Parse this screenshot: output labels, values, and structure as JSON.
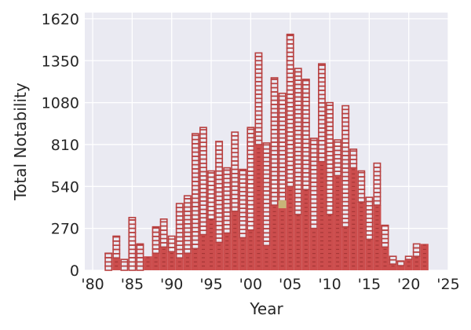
{
  "chart_data": {
    "type": "bar",
    "style": "stacked segment histogram (outlined boxes with filled lower stack)",
    "xlabel": "Year",
    "ylabel": "Total Notability",
    "xlim": [
      1979,
      2025
    ],
    "ylim": [
      0,
      1660
    ],
    "x_ticks": [
      1980,
      1985,
      1990,
      1995,
      2000,
      2005,
      2010,
      2015,
      2020,
      2025
    ],
    "x_tick_labels": [
      "'80",
      "'85",
      "'90",
      "'95",
      "'00",
      "'05",
      "'10",
      "'15",
      "'20",
      "'25"
    ],
    "y_ticks": [
      0,
      270,
      540,
      810,
      1080,
      1350,
      1620
    ],
    "y_tick_labels": [
      "0",
      "270",
      "540",
      "810",
      "1080",
      "1350",
      "1620"
    ],
    "grid": true,
    "bar_width_years": 1,
    "series": [
      {
        "name": "",
        "role": "total (outlined segments)",
        "color": "#b84040",
        "x": [
          1982,
          1983,
          1984,
          1985,
          1986,
          1987,
          1988,
          1989,
          1990,
          1991,
          1992,
          1993,
          1994,
          1995,
          1996,
          1997,
          1998,
          1999,
          2000,
          2001,
          2002,
          2003,
          2004,
          2005,
          2006,
          2007,
          2008,
          2009,
          2010,
          2011,
          2012,
          2013,
          2014,
          2015,
          2016,
          2017,
          2018,
          2019,
          2020,
          2021,
          2022
        ],
        "values": [
          110,
          220,
          70,
          340,
          170,
          90,
          280,
          330,
          220,
          430,
          480,
          880,
          920,
          640,
          830,
          660,
          890,
          650,
          920,
          1400,
          820,
          1240,
          1140,
          1520,
          1300,
          1230,
          850,
          1330,
          1080,
          840,
          1060,
          780,
          640,
          470,
          690,
          290,
          90,
          60,
          90,
          170,
          170
        ]
      },
      {
        "name": "",
        "role": "filled portion",
        "color": "#cc4d4d",
        "x": [
          1982,
          1983,
          1984,
          1985,
          1986,
          1987,
          1988,
          1989,
          1990,
          1991,
          1992,
          1993,
          1994,
          1995,
          1996,
          1997,
          1998,
          1999,
          2000,
          2001,
          2002,
          2003,
          2004,
          2005,
          2006,
          2007,
          2008,
          2009,
          2010,
          2011,
          2012,
          2013,
          2014,
          2015,
          2016,
          2017,
          2018,
          2019,
          2020,
          2021,
          2022
        ],
        "values": [
          0,
          80,
          0,
          0,
          0,
          90,
          110,
          150,
          120,
          80,
          110,
          140,
          230,
          330,
          180,
          240,
          380,
          210,
          260,
          810,
          160,
          420,
          420,
          540,
          360,
          520,
          270,
          700,
          360,
          610,
          280,
          660,
          440,
          200,
          420,
          150,
          40,
          30,
          70,
          90,
          170
        ]
      }
    ],
    "highlight_marker": {
      "x": 2004,
      "y": 425,
      "color": "#c8b478"
    }
  }
}
